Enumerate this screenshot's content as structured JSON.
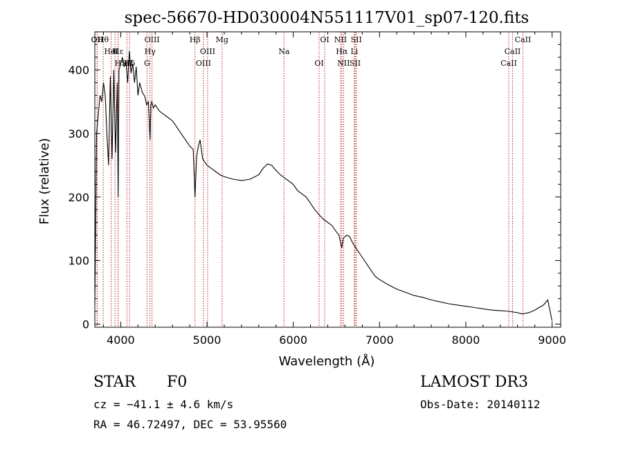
{
  "chart_data": {
    "type": "line",
    "title": "spec-56670-HD030004N551117V01_sp07-120.fits",
    "xlabel": "Wavelength (Å)",
    "ylabel": "Flux (relative)",
    "xlim": [
      3700,
      9100
    ],
    "ylim": [
      -5,
      460
    ],
    "xticks": [
      4000,
      5000,
      6000,
      7000,
      8000,
      9000
    ],
    "xtick_labels": [
      "4000",
      "5000",
      "6000",
      "7000",
      "8000",
      "9000"
    ],
    "yticks": [
      0,
      100,
      200,
      300,
      400
    ],
    "ytick_labels": [
      "0",
      "100",
      "200",
      "300",
      "400"
    ],
    "grid": false,
    "series": [
      {
        "name": "spectrum",
        "x": [
          3700,
          3720,
          3740,
          3760,
          3780,
          3800,
          3820,
          3840,
          3860,
          3880,
          3900,
          3920,
          3940,
          3960,
          3970,
          3980,
          4000,
          4020,
          4040,
          4060,
          4080,
          4100,
          4120,
          4140,
          4160,
          4180,
          4200,
          4220,
          4250,
          4280,
          4300,
          4320,
          4340,
          4350,
          4360,
          4380,
          4400,
          4450,
          4500,
          4550,
          4600,
          4650,
          4700,
          4750,
          4800,
          4840,
          4861,
          4880,
          4900,
          4920,
          4950,
          5000,
          5050,
          5100,
          5150,
          5200,
          5300,
          5400,
          5500,
          5600,
          5650,
          5700,
          5750,
          5780,
          5800,
          5850,
          5900,
          5950,
          6000,
          6050,
          6100,
          6150,
          6200,
          6250,
          6300,
          6350,
          6400,
          6450,
          6500,
          6530,
          6563,
          6580,
          6620,
          6650,
          6700,
          6750,
          6800,
          6850,
          6900,
          6950,
          7000,
          7100,
          7200,
          7300,
          7400,
          7500,
          7600,
          7700,
          7800,
          7900,
          8000,
          8100,
          8200,
          8300,
          8400,
          8500,
          8550,
          8600,
          8650,
          8700,
          8750,
          8800,
          8850,
          8900,
          8950,
          9000
        ],
        "y": [
          30,
          300,
          330,
          360,
          350,
          380,
          360,
          300,
          250,
          390,
          260,
          400,
          270,
          380,
          200,
          400,
          410,
          420,
          405,
          415,
          380,
          430,
          395,
          410,
          380,
          405,
          360,
          380,
          365,
          358,
          345,
          350,
          290,
          345,
          350,
          340,
          345,
          335,
          330,
          325,
          320,
          310,
          300,
          290,
          280,
          275,
          200,
          265,
          280,
          290,
          260,
          250,
          245,
          240,
          235,
          232,
          228,
          226,
          228,
          235,
          245,
          252,
          250,
          245,
          242,
          235,
          230,
          225,
          220,
          210,
          205,
          200,
          190,
          180,
          172,
          165,
          160,
          155,
          145,
          140,
          120,
          135,
          140,
          138,
          125,
          115,
          105,
          95,
          85,
          75,
          70,
          62,
          55,
          50,
          45,
          42,
          38,
          35,
          32,
          30,
          28,
          26,
          24,
          22,
          21,
          20,
          19,
          18,
          16,
          17,
          19,
          22,
          26,
          30,
          38,
          5
        ]
      }
    ],
    "lines": [
      {
        "label": "Hθ",
        "wavelength": 3797
      },
      {
        "label": "K",
        "wavelength": 3934
      },
      {
        "label": "Hδ",
        "wavelength": 4102
      },
      {
        "label": "OII",
        "wavelength": 3727
      },
      {
        "label": "HeI",
        "wavelength": 3889
      },
      {
        "label": "SII",
        "wavelength": 4072
      },
      {
        "label": "OII",
        "wavelength": 3727
      },
      {
        "label": "Hε",
        "wavelength": 3970
      },
      {
        "label": "H",
        "wavelength": 3968
      },
      {
        "label": "OIII",
        "wavelength": 4363
      },
      {
        "label": "Hγ",
        "wavelength": 4340
      },
      {
        "label": "G",
        "wavelength": 4305
      },
      {
        "label": "Hβ",
        "wavelength": 4861
      },
      {
        "label": "OIII",
        "wavelength": 5007
      },
      {
        "label": "OIII",
        "wavelength": 4959
      },
      {
        "label": "Mg",
        "wavelength": 5175
      },
      {
        "label": "Na",
        "wavelength": 5893
      },
      {
        "label": "OI",
        "wavelength": 6300
      },
      {
        "label": "OI",
        "wavelength": 6364
      },
      {
        "label": "Hα",
        "wavelength": 6563
      },
      {
        "label": "SII",
        "wavelength": 6717
      },
      {
        "label": "NII",
        "wavelength": 6548
      },
      {
        "label": "Li",
        "wavelength": 6708
      },
      {
        "label": "NII",
        "wavelength": 6583
      },
      {
        "label": "SII",
        "wavelength": 6731
      },
      {
        "label": "CaII",
        "wavelength": 8542
      },
      {
        "label": "CaII",
        "wavelength": 8498
      },
      {
        "label": "CaII",
        "wavelength": 8662
      }
    ]
  },
  "info": {
    "class": "STAR",
    "subclass": "F0",
    "survey": "LAMOST DR3",
    "cz": "cz = −41.1 ± 4.6 km/s",
    "obs_date": "Obs-Date: 20140112",
    "radec": "RA =  46.72497, DEC =  53.95560"
  }
}
